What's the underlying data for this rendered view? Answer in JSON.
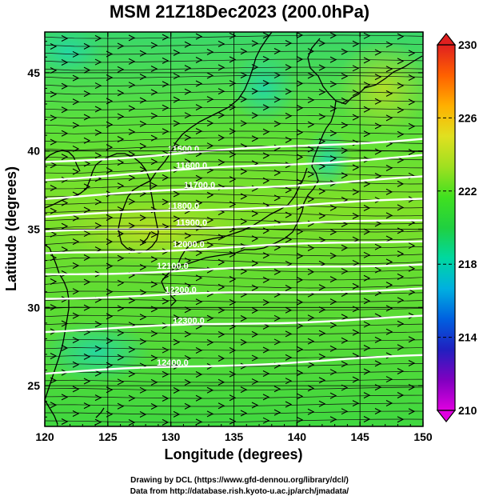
{
  "title": "MSM 21Z18Dec2023 (200.0hPa)",
  "xlabel": "Longitude (degrees)",
  "ylabel": "Latitude  (degrees)",
  "x_ticks": [
    "120",
    "125",
    "130",
    "135",
    "140",
    "145",
    "150"
  ],
  "y_ticks": [
    "25",
    "30",
    "35",
    "40",
    "45"
  ],
  "colorbar": {
    "ticks": [
      "210",
      "214",
      "218",
      "222",
      "226",
      "230"
    ],
    "colors": [
      "#e000e0",
      "#8000c0",
      "#2020c0",
      "#0060e0",
      "#00b0e0",
      "#00d8a0",
      "#20d040",
      "#40e020",
      "#a0e020",
      "#e0e020",
      "#ffb000",
      "#ff6000",
      "#e02020"
    ]
  },
  "contour_labels": [
    "11500.0",
    "11600.0",
    "11700.0",
    "11800.0",
    "11900.0",
    "12000.0",
    "12100.0",
    "12200.0",
    "12300.0",
    "12400.0"
  ],
  "credit": {
    "line1": "Drawing by DCL (https://www.gfd-dennou.org/library/dcl/)",
    "line2": "Data from http://database.rish.kyoto-u.ac.jp/arch/jmadata/"
  },
  "chart_data": {
    "type": "map",
    "title": "MSM 21Z18Dec2023 (200.0hPa)",
    "xlabel": "Longitude (degrees)",
    "ylabel": "Latitude  (degrees)",
    "xlim": [
      120,
      150
    ],
    "ylim": [
      22.4,
      47.6
    ],
    "colorbar_range": [
      210,
      230
    ],
    "fill_variable_range_visible": [
      219,
      224
    ],
    "geopotential_height_contours": [
      {
        "value": 11500.0,
        "lat_west": 39.3,
        "lat_east": 40.8
      },
      {
        "value": 11600.0,
        "lat_west": 38.2,
        "lat_east": 39.7
      },
      {
        "value": 11700.0,
        "lat_west": 37.0,
        "lat_east": 38.3
      },
      {
        "value": 11800.0,
        "lat_west": 35.8,
        "lat_east": 36.9
      },
      {
        "value": 11900.0,
        "lat_west": 34.8,
        "lat_east": 35.6
      },
      {
        "value": 12000.0,
        "lat_west": 33.4,
        "lat_east": 34.3
      },
      {
        "value": 12100.0,
        "lat_west": 32.1,
        "lat_east": 32.8
      },
      {
        "value": 12200.0,
        "lat_west": 30.6,
        "lat_east": 31.2
      },
      {
        "value": 12300.0,
        "lat_west": 28.5,
        "lat_east": 29.4
      },
      {
        "value": 12400.0,
        "lat_west": 25.8,
        "lat_east": 26.9
      }
    ],
    "wind": "westerly streamlines across entire domain"
  }
}
